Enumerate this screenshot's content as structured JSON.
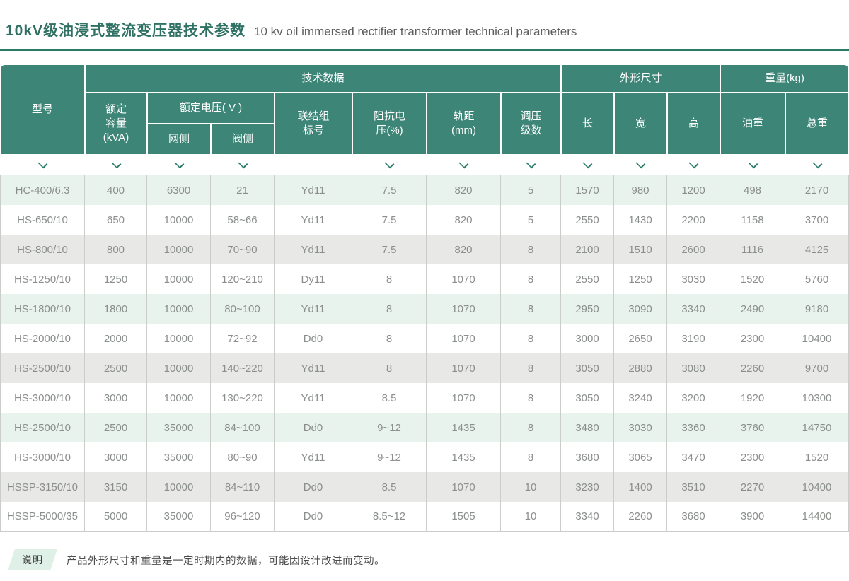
{
  "title": {
    "zh": "10kV级油浸式整流变压器技术参数",
    "en": "10 kv oil immersed rectifier transformer technical parameters"
  },
  "colors": {
    "header_teal": "#3d8577",
    "accent_teal": "#2a7a68",
    "title_teal": "#2f7164",
    "row_green": "#e9f3ed",
    "row_gray": "#e8e8e7",
    "body_text": "#8b8f8c",
    "border_gray": "#c9cec9",
    "note_bg": "#dff0e7"
  },
  "table": {
    "groups": {
      "tech": "技术数据",
      "dimensions": "外形尺寸",
      "weight": "重量(kg)"
    },
    "headers": {
      "model": "型号",
      "rated_capacity": "额定\n容量\n(kVA)",
      "rated_voltage": "额定电压( V )",
      "grid_side": "网侧",
      "valve_side": "阀侧",
      "vector_group": "联结组\n标号",
      "impedance_voltage": "阻抗电\n压(%)",
      "track_gauge": "轨距\n(mm)",
      "tap_steps": "调压\n级数",
      "length": "长",
      "width": "宽",
      "height": "高",
      "oil_weight": "油重",
      "total_weight": "总重"
    },
    "chevrons": [
      true,
      true,
      true,
      true,
      false,
      true,
      true,
      true,
      true,
      true,
      true,
      true,
      true
    ],
    "rows": [
      {
        "tone": "green",
        "cells": [
          "HC-400/6.3",
          "400",
          "6300",
          "21",
          "Yd11",
          "7.5",
          "820",
          "5",
          "1570",
          "980",
          "1200",
          "498",
          "2170"
        ]
      },
      {
        "tone": "white",
        "cells": [
          "HS-650/10",
          "650",
          "10000",
          "58~66",
          "Yd11",
          "7.5",
          "820",
          "5",
          "2550",
          "1430",
          "2200",
          "1158",
          "3700"
        ]
      },
      {
        "tone": "gray",
        "cells": [
          "HS-800/10",
          "800",
          "10000",
          "70~90",
          "Yd11",
          "7.5",
          "820",
          "8",
          "2100",
          "1510",
          "2600",
          "1116",
          "4125"
        ]
      },
      {
        "tone": "white",
        "cells": [
          "HS-1250/10",
          "1250",
          "10000",
          "120~210",
          "Dy11",
          "8",
          "1070",
          "8",
          "2550",
          "1250",
          "3030",
          "1520",
          "5760"
        ]
      },
      {
        "tone": "green",
        "cells": [
          "HS-1800/10",
          "1800",
          "10000",
          "80~100",
          "Yd11",
          "8",
          "1070",
          "8",
          "2950",
          "3090",
          "3340",
          "2490",
          "9180"
        ]
      },
      {
        "tone": "white",
        "cells": [
          "HS-2000/10",
          "2000",
          "10000",
          "72~92",
          "Dd0",
          "8",
          "1070",
          "8",
          "3000",
          "2650",
          "3190",
          "2300",
          "10400"
        ]
      },
      {
        "tone": "gray",
        "cells": [
          "HS-2500/10",
          "2500",
          "10000",
          "140~220",
          "Yd11",
          "8",
          "1070",
          "8",
          "3050",
          "2880",
          "3080",
          "2260",
          "9700"
        ]
      },
      {
        "tone": "white",
        "cells": [
          "HS-3000/10",
          "3000",
          "10000",
          "130~220",
          "Yd11",
          "8.5",
          "1070",
          "8",
          "3050",
          "3240",
          "3200",
          "1920",
          "10300"
        ]
      },
      {
        "tone": "green",
        "cells": [
          "HS-2500/10",
          "2500",
          "35000",
          "84~100",
          "Dd0",
          "9~12",
          "1435",
          "8",
          "3480",
          "3030",
          "3360",
          "3760",
          "14750"
        ]
      },
      {
        "tone": "white",
        "cells": [
          "HS-3000/10",
          "3000",
          "35000",
          "80~90",
          "Yd11",
          "9~12",
          "1435",
          "8",
          "3680",
          "3065",
          "3470",
          "2300",
          "1520"
        ]
      },
      {
        "tone": "gray",
        "cells": [
          "HSSP-3150/10",
          "3150",
          "10000",
          "84~110",
          "Dd0",
          "8.5",
          "1070",
          "10",
          "3230",
          "1400",
          "3510",
          "2270",
          "10400"
        ]
      },
      {
        "tone": "white",
        "cells": [
          "HSSP-5000/35",
          "5000",
          "35000",
          "96~120",
          "Dd0",
          "8.5~12",
          "1505",
          "10",
          "3340",
          "2260",
          "3680",
          "3900",
          "14400"
        ]
      }
    ]
  },
  "note": {
    "label": "说明",
    "text": "产品外形尺寸和重量是一定时期内的数据，可能因设计改进而变动。"
  }
}
